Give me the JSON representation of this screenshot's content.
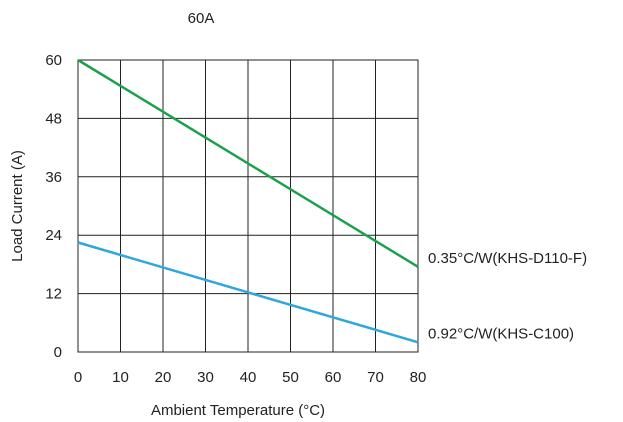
{
  "chart_data": {
    "type": "line",
    "title": "60A",
    "xlabel": "Ambient Temperature (°C)",
    "ylabel": "Load Current (A)",
    "xlim": [
      0,
      80
    ],
    "ylim": [
      0,
      60
    ],
    "x_ticks": [
      0,
      10,
      20,
      30,
      40,
      50,
      60,
      70,
      80
    ],
    "y_ticks": [
      0,
      12,
      24,
      36,
      48,
      60
    ],
    "grid": true,
    "series": [
      {
        "name": "0.35°C/W(KHS-D110-F)",
        "color": "#1aa24a",
        "x": [
          0,
          80
        ],
        "y": [
          60,
          17.5
        ]
      },
      {
        "name": "0.92°C/W(KHS-C100)",
        "color": "#2ea7dc",
        "x": [
          0,
          80
        ],
        "y": [
          22.5,
          2
        ]
      }
    ]
  }
}
